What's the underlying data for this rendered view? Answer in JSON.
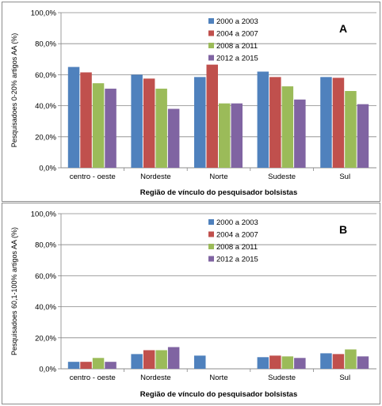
{
  "chart_data": [
    {
      "type": "bar",
      "panel_label": "A",
      "categories": [
        "centro - oeste",
        "Nordeste",
        "Norte",
        "Sudeste",
        "Sul"
      ],
      "series": [
        {
          "name": "2000 a 2003",
          "color": "#4F81BD",
          "values": [
            65,
            60,
            58.5,
            62,
            58.5
          ]
        },
        {
          "name": "2004 a 2007",
          "color": "#C0504D",
          "values": [
            61.5,
            57.5,
            66.5,
            58.5,
            58
          ]
        },
        {
          "name": "2008 a 2011",
          "color": "#9BBB59",
          "values": [
            54.5,
            51,
            41.5,
            52.5,
            49.5
          ]
        },
        {
          "name": "2012 a 2015",
          "color": "#8064A2",
          "values": [
            51,
            38,
            41.5,
            44,
            41
          ]
        }
      ],
      "yticks": [
        "0,0%",
        "20,0%",
        "40,0%",
        "60,0%",
        "80,0%",
        "100,0%"
      ],
      "ylim": [
        0,
        100
      ],
      "ylabel": "Pesquisadoes 0-20% artigos AA (%)",
      "xlabel": "Região de vínculo do pesquisador bolsistas",
      "legend": "top-right",
      "grid": true
    },
    {
      "type": "bar",
      "panel_label": "B",
      "categories": [
        "centro - oeste",
        "Nordeste",
        "Norte",
        "Sudeste",
        "Sul"
      ],
      "series": [
        {
          "name": "2000 a 2003",
          "color": "#4F81BD",
          "values": [
            4.5,
            9.5,
            8.5,
            7.5,
            10
          ]
        },
        {
          "name": "2004 a 2007",
          "color": "#C0504D",
          "values": [
            4.5,
            12,
            0,
            8.5,
            9.5
          ]
        },
        {
          "name": "2008 a 2011",
          "color": "#9BBB59",
          "values": [
            7,
            12,
            0,
            8,
            12.5
          ]
        },
        {
          "name": "2012 a 2015",
          "color": "#8064A2",
          "values": [
            4.5,
            14,
            0,
            7,
            8
          ]
        }
      ],
      "yticks": [
        "0,0%",
        "20,0%",
        "40,0%",
        "60,0%",
        "80,0%",
        "100,0%"
      ],
      "ylim": [
        0,
        100
      ],
      "ylabel": "Pesquisadoes 60,1-100% artigos AA (%)",
      "xlabel": "Região de vínculo do pesquisador bolsistas",
      "legend": "top-right",
      "grid": true
    }
  ]
}
